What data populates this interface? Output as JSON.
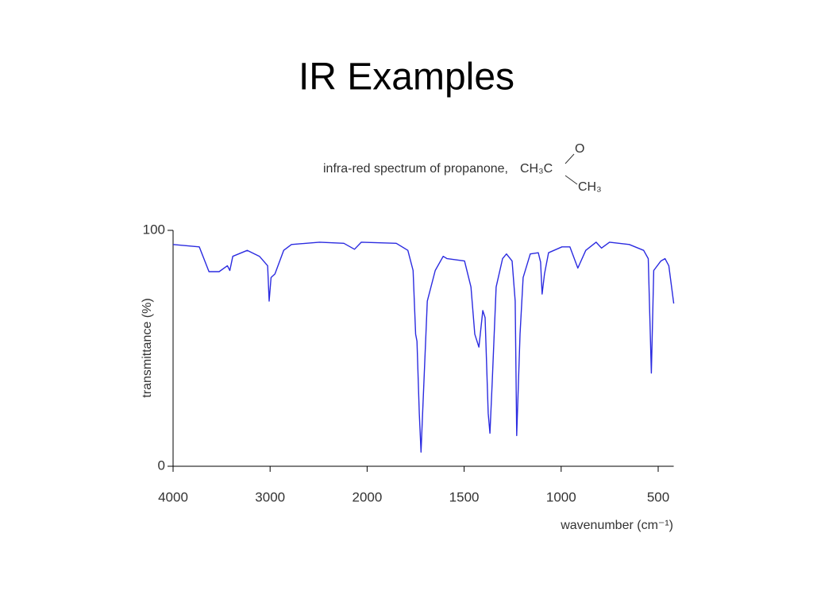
{
  "chart_data": {
    "type": "line",
    "title": "IR Examples",
    "subtitle": "infra-red spectrum of propanone,",
    "formula": {
      "main": "CH₃C",
      "top": "O",
      "bottom": "CH₃"
    },
    "xlabel": "wavenumber (cm⁻¹)",
    "ylabel": "transmittance (%)",
    "xlim": [
      4000,
      420
    ],
    "ylim": [
      0,
      100
    ],
    "xticks": [
      4000,
      3000,
      2000,
      1500,
      1000,
      500
    ],
    "yticks": [
      0,
      100
    ],
    "series": [
      {
        "name": "propanone",
        "color": "#2b2be0",
        "x": [
          4000,
          3730,
          3630,
          3525,
          3440,
          3415,
          3385,
          3235,
          3110,
          3025,
          3010,
          2990,
          2950,
          2860,
          2780,
          2490,
          2240,
          2130,
          2060,
          1850,
          1790,
          1763,
          1750,
          1743,
          1731,
          1722,
          1714,
          1690,
          1649,
          1608,
          1588,
          1498,
          1465,
          1445,
          1424,
          1404,
          1392,
          1376,
          1367,
          1355,
          1335,
          1302,
          1282,
          1253,
          1237,
          1229,
          1212,
          1196,
          1159,
          1118,
          1106,
          1098,
          1086,
          1065,
          996,
          955,
          914,
          873,
          820,
          792,
          751,
          649,
          575,
          551,
          543,
          535,
          523,
          486,
          465,
          445,
          420
        ],
        "values": [
          94,
          93,
          82.5,
          82.5,
          85,
          83,
          89,
          91.5,
          89,
          85,
          70,
          80,
          81.5,
          91.5,
          94,
          95,
          94.5,
          92,
          95,
          94.5,
          91.5,
          83,
          56,
          53,
          22.5,
          6,
          22.5,
          70,
          83,
          89,
          88,
          87,
          76,
          56,
          50.5,
          66,
          63,
          22.5,
          14,
          36,
          76,
          88,
          90,
          87,
          70,
          13,
          56,
          80,
          90,
          90.5,
          86.5,
          73,
          81.5,
          90.5,
          93,
          93,
          84,
          91.5,
          95,
          92.5,
          95,
          94,
          91.5,
          88,
          63,
          39.5,
          83,
          87,
          88,
          85,
          69
        ]
      }
    ]
  }
}
